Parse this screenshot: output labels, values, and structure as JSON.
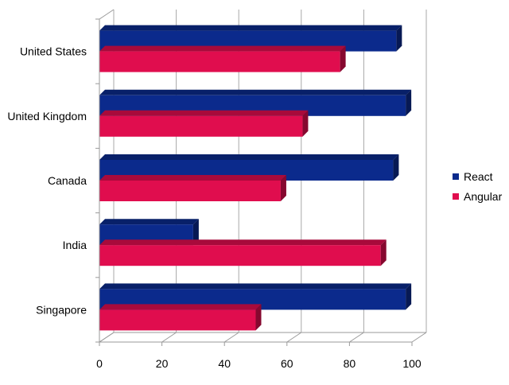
{
  "chart_data": {
    "type": "bar",
    "orientation": "horizontal",
    "style": "3d-clustered",
    "categories": [
      "United States",
      "United Kingdom",
      "Canada",
      "India",
      "Singapore"
    ],
    "series": [
      {
        "name": "React",
        "values": [
          95,
          98,
          94,
          30,
          98
        ],
        "color": "#0b2a8c"
      },
      {
        "name": "Angular",
        "values": [
          77,
          65,
          58,
          90,
          50
        ],
        "color": "#e00d4e"
      }
    ],
    "xlim": [
      0,
      100
    ],
    "xticks": [
      "0",
      "20",
      "40",
      "60",
      "80",
      "100"
    ],
    "grid": true,
    "legend_position": "right"
  }
}
